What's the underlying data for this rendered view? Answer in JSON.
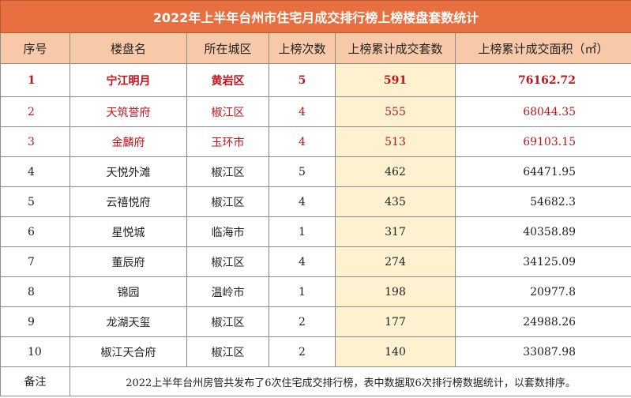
{
  "title": "2022年上半年台州市住宅月成交排行榜上榜楼盘套数统计",
  "headers": [
    "序号",
    "楼盘名",
    "所在城区",
    "上榜次数",
    "上榜累计成交套数",
    "上榜累计成交面积（㎡）"
  ],
  "rows": [
    {
      "no": "1",
      "name": "宁江明月",
      "district": "黄岩区",
      "times": "5",
      "units": "591",
      "area": "76162.72"
    },
    {
      "no": "2",
      "name": "天筑誉府",
      "district": "椒江区",
      "times": "4",
      "units": "555",
      "area": "68044.35"
    },
    {
      "no": "3",
      "name": "金麟府",
      "district": "玉环市",
      "times": "4",
      "units": "513",
      "area": "69103.15"
    },
    {
      "no": "4",
      "name": "天悦外滩",
      "district": "椒江区",
      "times": "5",
      "units": "462",
      "area": "64471.95"
    },
    {
      "no": "5",
      "name": "云禧悦府",
      "district": "椒江区",
      "times": "4",
      "units": "435",
      "area": "54682.3"
    },
    {
      "no": "6",
      "name": "星悦城",
      "district": "临海市",
      "times": "1",
      "units": "317",
      "area": "40358.89"
    },
    {
      "no": "7",
      "name": "董辰府",
      "district": "椒江区",
      "times": "4",
      "units": "274",
      "area": "34125.09"
    },
    {
      "no": "8",
      "name": "锦园",
      "district": "温岭市",
      "times": "1",
      "units": "198",
      "area": "20977.8"
    },
    {
      "no": "9",
      "name": "龙湖天玺",
      "district": "椒江区",
      "times": "2",
      "units": "177",
      "area": "24988.26"
    },
    {
      "no": "10",
      "name": "椒江天合府",
      "district": "椒江区",
      "times": "2",
      "units": "140",
      "area": "33087.98"
    }
  ],
  "note_label": "备注",
  "note_text": "2022上半年台州房管共发布了6次住宅成交排行榜，表中数据取6次排行榜数据统计，以套数排序。",
  "colors": {
    "title_bg": "#e86f3f",
    "header_bg": "#f8c9a8",
    "highlight_column_bg": "#fdf1cf",
    "top3_text": "#c0141a"
  }
}
